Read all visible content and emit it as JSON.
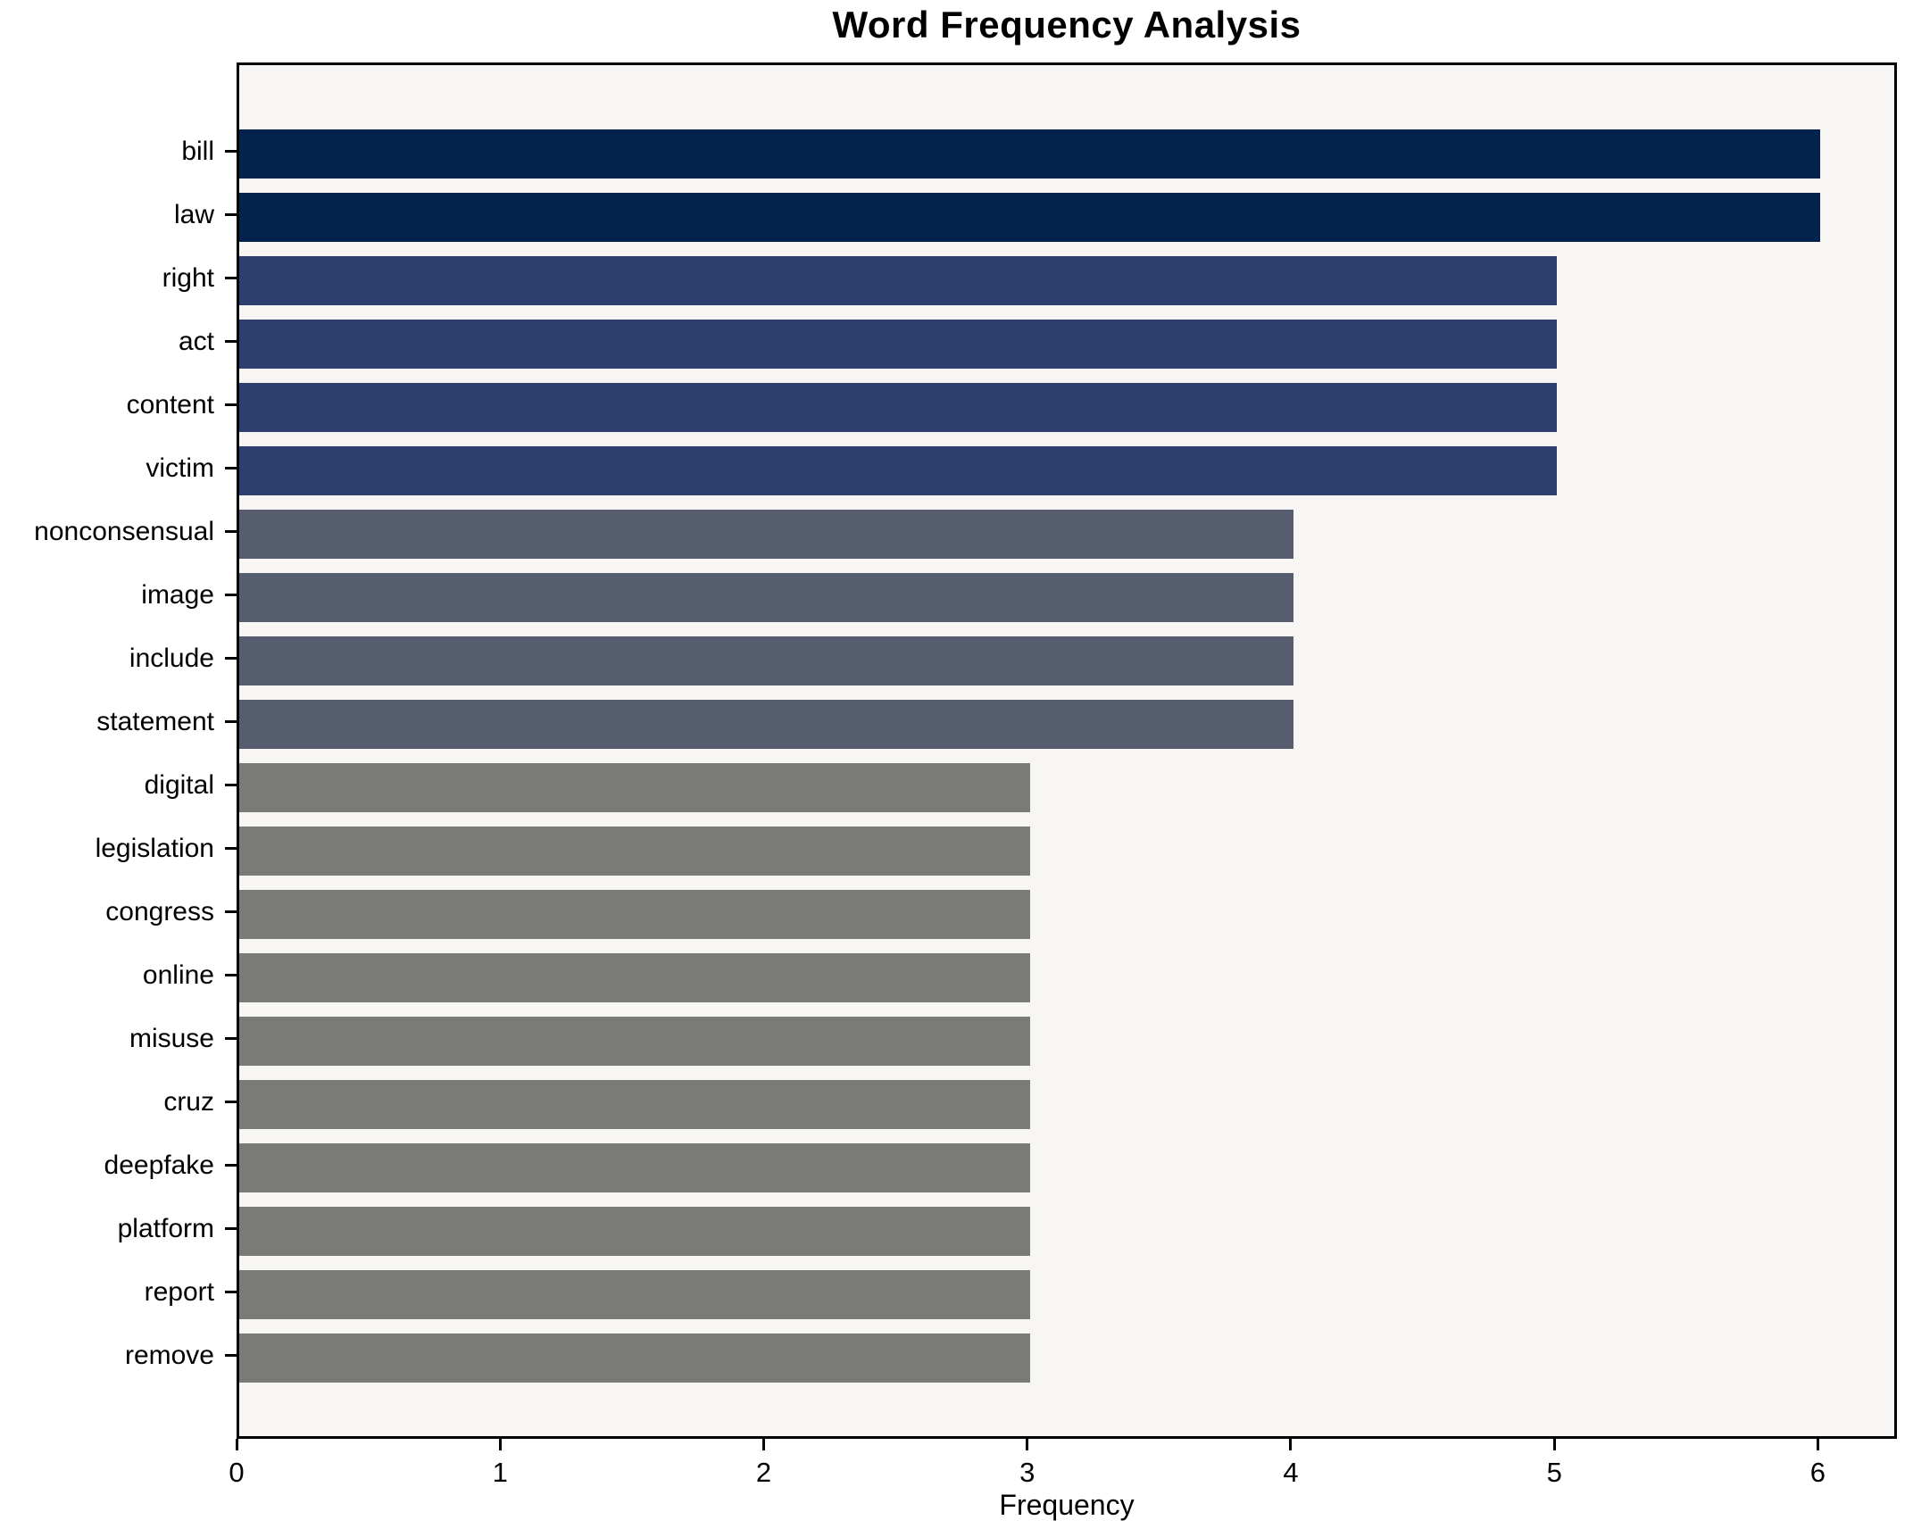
{
  "title": "Word Frequency Analysis",
  "xlabel": "Frequency",
  "chart_data": {
    "type": "bar",
    "orientation": "horizontal",
    "title": "Word Frequency Analysis",
    "xlabel": "Frequency",
    "ylabel": "",
    "categories": [
      "bill",
      "law",
      "right",
      "act",
      "content",
      "victim",
      "nonconsensual",
      "image",
      "include",
      "statement",
      "digital",
      "legislation",
      "congress",
      "online",
      "misuse",
      "cruz",
      "deepfake",
      "platform",
      "report",
      "remove"
    ],
    "values": [
      6,
      6,
      5,
      5,
      5,
      5,
      4,
      4,
      4,
      4,
      3,
      3,
      3,
      3,
      3,
      3,
      3,
      3,
      3,
      3
    ],
    "xticks": [
      "0",
      "1",
      "2",
      "3",
      "4",
      "5",
      "6"
    ],
    "xlim": [
      0,
      6.3
    ],
    "grid": false,
    "legend": null,
    "colors_by_value": {
      "6": "#03234c",
      "5": "#2c3f6e",
      "4": "#565d6e",
      "3": "#7a7a76"
    },
    "bar_colors": [
      "#03234c",
      "#03234c",
      "#2c3f6e",
      "#2c3f6e",
      "#2c3f6e",
      "#2c3f6e",
      "#565d6e",
      "#565d6e",
      "#565d6e",
      "#565d6e",
      "#7a7a76",
      "#7a7a76",
      "#7a7a76",
      "#7a7a76",
      "#7a7a76",
      "#7a7a76",
      "#7a7a76",
      "#7a7a76",
      "#7a7a76",
      "#7a7a76"
    ],
    "plot_background": "#f7f6f4",
    "figure_background": "#ffffff",
    "spine_color": "#000000"
  }
}
